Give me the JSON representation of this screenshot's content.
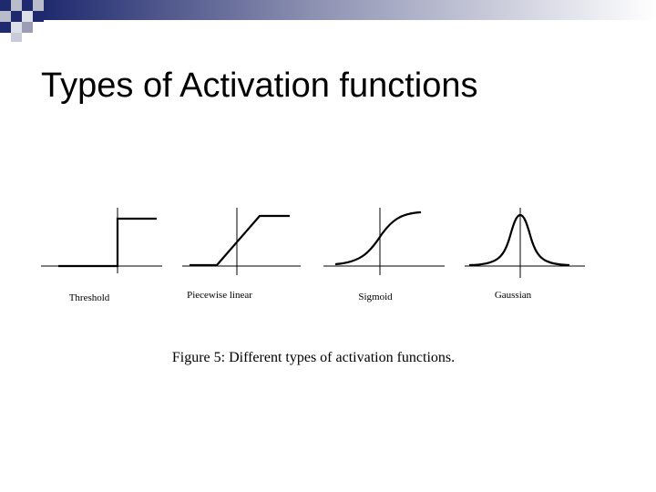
{
  "title": "Types of Activation functions",
  "figure": {
    "panels": [
      {
        "label": "Threshold"
      },
      {
        "label": "Piecewise linear"
      },
      {
        "label": "Sigmoid"
      },
      {
        "label": "Gaussian"
      }
    ],
    "caption": "Figure 5: Different types of activation functions."
  }
}
